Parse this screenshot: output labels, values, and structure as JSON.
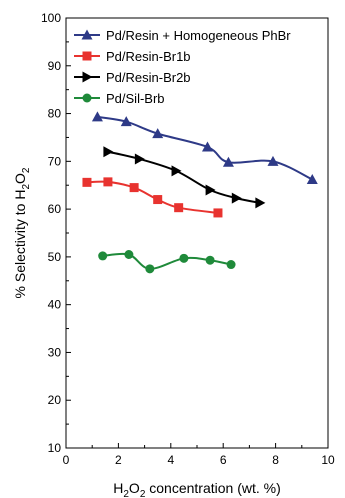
{
  "chart_data": {
    "type": "line",
    "title": "",
    "xlabel": "H2O2 concentration (wt. %)",
    "ylabel": "% Selectivity to H2O2",
    "xlim": [
      0,
      10
    ],
    "ylim": [
      10,
      100
    ],
    "xticks": [
      0,
      2,
      4,
      6,
      8,
      10
    ],
    "yticks": [
      10,
      20,
      30,
      40,
      50,
      60,
      70,
      80,
      90,
      100
    ],
    "grid": false,
    "legend_position": "top-left",
    "series": [
      {
        "name": "Pd/Resin + Homogeneous PhBr",
        "color": "#2e3a87",
        "marker": "triangle-up",
        "x": [
          1.2,
          2.3,
          3.5,
          5.4,
          6.2,
          7.9,
          9.4
        ],
        "y": [
          79.3,
          78.3,
          75.8,
          73.0,
          69.8,
          70.0,
          66.2
        ]
      },
      {
        "name": "Pd/Resin-Br1b",
        "color": "#e8332f",
        "marker": "square",
        "x": [
          0.8,
          1.6,
          2.6,
          3.5,
          4.3,
          5.8
        ],
        "y": [
          65.6,
          65.7,
          64.5,
          62.0,
          60.3,
          59.2
        ]
      },
      {
        "name": "Pd/Resin-Br2b",
        "color": "#000000",
        "marker": "triangle-right",
        "x": [
          1.6,
          2.8,
          4.2,
          5.5,
          6.5,
          7.4
        ],
        "y": [
          72.0,
          70.5,
          68.0,
          64.0,
          62.3,
          61.3
        ]
      },
      {
        "name": "Pd/Sil-Brb",
        "color": "#1f8a3a",
        "marker": "circle",
        "x": [
          1.4,
          2.4,
          3.2,
          4.5,
          5.5,
          6.3
        ],
        "y": [
          50.2,
          50.5,
          47.5,
          49.7,
          49.3,
          48.4
        ]
      }
    ]
  }
}
